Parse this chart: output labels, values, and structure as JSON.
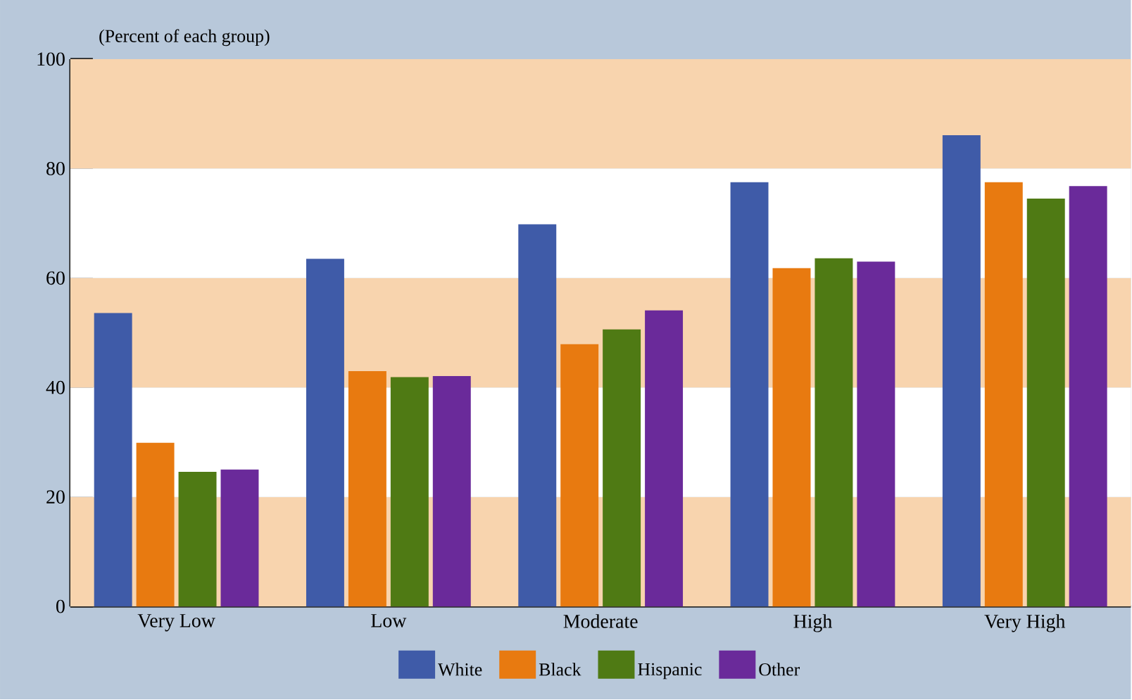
{
  "chart_data": {
    "type": "bar",
    "ylabel": "(Percent of each group)",
    "categories": [
      "Very Low",
      "Low",
      "Moderate",
      "High",
      "Very High"
    ],
    "series": [
      {
        "name": "White",
        "color": "#3f5ba8",
        "values": [
          53.6,
          63.5,
          69.8,
          77.5,
          86.1
        ]
      },
      {
        "name": "Black",
        "color": "#e87a10",
        "values": [
          29.9,
          43.0,
          47.9,
          61.8,
          77.5
        ]
      },
      {
        "name": "Hispanic",
        "color": "#4f7a14",
        "values": [
          24.6,
          41.9,
          50.6,
          63.6,
          74.5
        ]
      },
      {
        "name": "Other",
        "color": "#6a2a9a",
        "values": [
          25.0,
          42.1,
          54.1,
          63.0,
          76.8
        ]
      }
    ],
    "ylim": [
      0,
      100
    ],
    "yticks": [
      0,
      20,
      40,
      60,
      80,
      100
    ],
    "bands": [
      {
        "axis": "y",
        "from": 0,
        "to": 20,
        "color": "#f8d4ae"
      },
      {
        "axis": "y",
        "from": 20,
        "to": 40,
        "color": "#ffffff"
      },
      {
        "axis": "y",
        "from": 40,
        "to": 60,
        "color": "#f8d4ae"
      },
      {
        "axis": "y",
        "from": 60,
        "to": 80,
        "color": "#ffffff"
      },
      {
        "axis": "y",
        "from": 80,
        "to": 100,
        "color": "#f8d4ae"
      }
    ],
    "grid": false,
    "legend": "bottom"
  }
}
